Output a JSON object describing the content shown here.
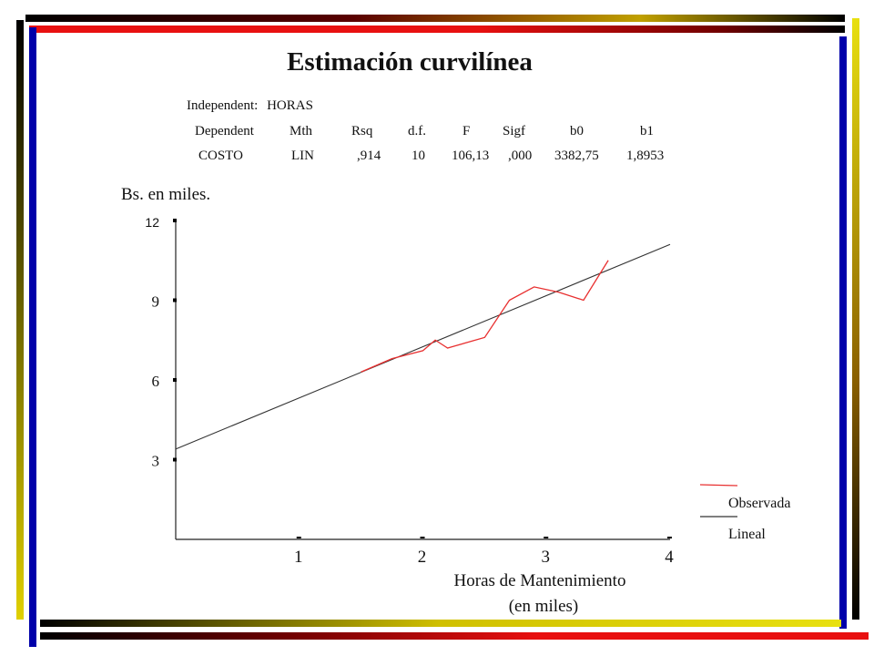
{
  "page": {
    "title": "Estimación curvilínea",
    "stats": {
      "independent_label": "Independent:",
      "independent_value": "HORAS",
      "headers": [
        "Dependent",
        "Mth",
        "Rsq",
        "d.f.",
        "F",
        "Sigf",
        "b0",
        "b1"
      ],
      "row": [
        "COSTO",
        "LIN",
        ",914",
        "10",
        "106,13",
        ",000",
        "3382,75",
        "1,8953"
      ]
    }
  },
  "colors": {
    "observed": "#e83030",
    "fit": "#333333",
    "red": "#e81010",
    "blue": "#0000aa",
    "yellow": "#e8e010",
    "dark": "#000000"
  },
  "chart_data": {
    "type": "line",
    "ylabel": "Bs. en miles.",
    "xlabel": "Horas de Mantenimiento",
    "xlabel_sub": "(en miles)",
    "x_ticks": [
      "1",
      "2",
      "3",
      "4"
    ],
    "y_ticks": [
      "3",
      "6",
      "9",
      "12"
    ],
    "xlim": [
      0,
      4
    ],
    "ylim": [
      0,
      12
    ],
    "series": [
      {
        "name": "Observada",
        "x": [
          1.5,
          1.75,
          2.0,
          2.1,
          2.2,
          2.5,
          2.7,
          2.9,
          3.1,
          3.3,
          3.5
        ],
        "y": [
          6.3,
          6.8,
          7.1,
          7.5,
          7.2,
          7.6,
          9.0,
          9.5,
          9.3,
          9.0,
          10.5
        ]
      },
      {
        "name": "Lineal",
        "x": [
          0,
          4
        ],
        "y": [
          3.4,
          11.1
        ]
      }
    ]
  }
}
